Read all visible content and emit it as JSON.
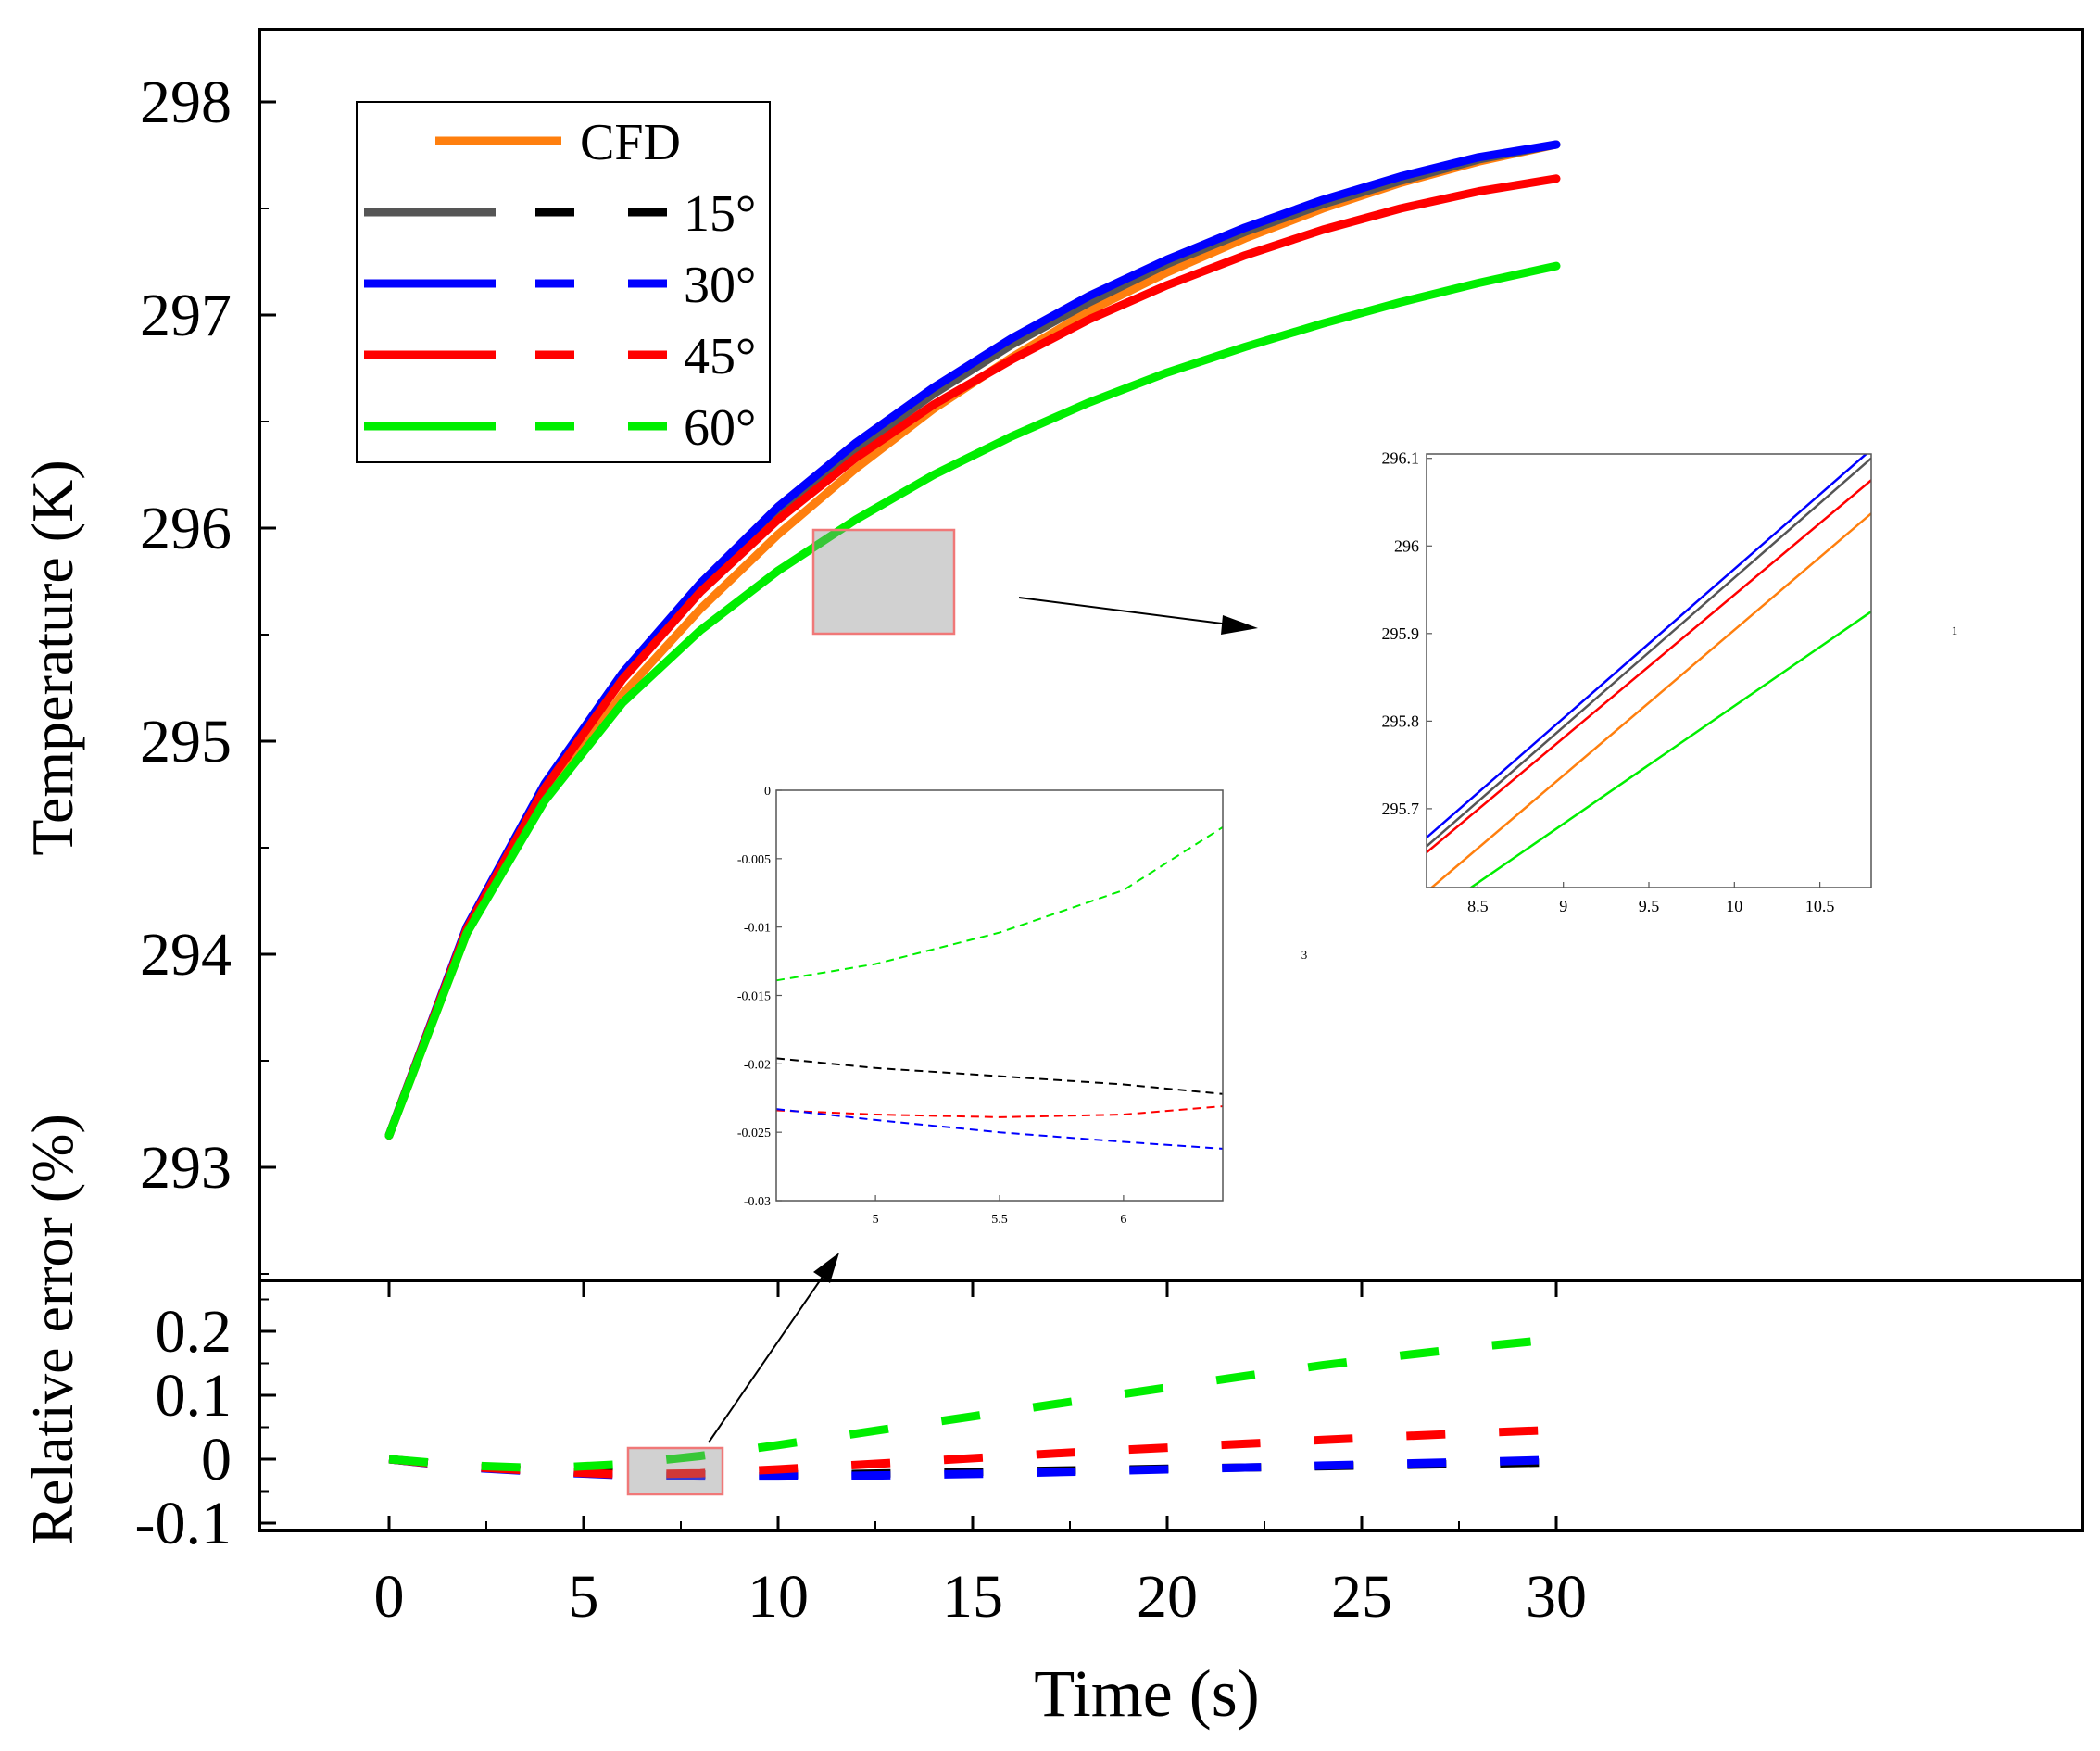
{
  "chart_data": [
    {
      "id": "main-top",
      "type": "line",
      "ylabel": "Temperature (K)",
      "ylim": [
        292.5,
        298.5
      ],
      "xlim": [
        -2.5,
        32.5
      ],
      "yticks": [
        "293",
        "294",
        "295",
        "296",
        "297",
        "298"
      ],
      "legend": {
        "placement": "top-left",
        "entries": [
          {
            "label": "CFD",
            "color": "#ff7f0e",
            "styles": [
              "solid"
            ]
          },
          {
            "label": "15°",
            "color_solid": "#555555",
            "color_dashed": "#000000",
            "styles": [
              "solid",
              "dashed"
            ]
          },
          {
            "label": "30°",
            "color": "#0000ff",
            "styles": [
              "solid",
              "dashed"
            ]
          },
          {
            "label": "45°",
            "color": "#ff0000",
            "styles": [
              "solid",
              "dashed"
            ]
          },
          {
            "label": "60°",
            "color": "#00ee00",
            "styles": [
              "solid",
              "dashed"
            ]
          }
        ]
      },
      "x": [
        0,
        2,
        4,
        6,
        8,
        10,
        12,
        14,
        16,
        18,
        20,
        22,
        24,
        26,
        28,
        30
      ],
      "series": [
        {
          "name": "CFD",
          "color": "#ff7f0e",
          "values": [
            293.15,
            294.1,
            294.73,
            295.22,
            295.62,
            295.97,
            296.28,
            296.56,
            296.8,
            297.02,
            297.2,
            297.36,
            297.5,
            297.62,
            297.72,
            297.8
          ]
        },
        {
          "name": "15°",
          "color": "#555555",
          "values": [
            293.15,
            294.12,
            294.78,
            295.3,
            295.72,
            296.07,
            296.37,
            296.63,
            296.86,
            297.06,
            297.24,
            297.39,
            297.52,
            297.63,
            297.73,
            297.8
          ]
        },
        {
          "name": "30°",
          "color": "#0000ff",
          "values": [
            293.15,
            294.13,
            294.8,
            295.32,
            295.74,
            296.1,
            296.4,
            296.66,
            296.89,
            297.09,
            297.26,
            297.41,
            297.54,
            297.65,
            297.74,
            297.8
          ]
        },
        {
          "name": "45°",
          "color": "#ff0000",
          "values": [
            293.15,
            294.12,
            294.78,
            295.29,
            295.7,
            296.04,
            296.33,
            296.58,
            296.79,
            296.98,
            297.14,
            297.28,
            297.4,
            297.5,
            297.58,
            297.64
          ]
        },
        {
          "name": "60°",
          "color": "#00ee00",
          "values": [
            293.15,
            294.1,
            294.72,
            295.18,
            295.52,
            295.8,
            296.04,
            296.25,
            296.43,
            296.59,
            296.73,
            296.85,
            296.96,
            297.06,
            297.15,
            297.23
          ]
        }
      ]
    },
    {
      "id": "main-bottom",
      "type": "line",
      "xlabel": "Time (s)",
      "ylabel": "Relative error (%)",
      "ylim": [
        -0.12,
        0.28
      ],
      "xlim": [
        -2.5,
        32.5
      ],
      "xticks": [
        "0",
        "5",
        "10",
        "15",
        "20",
        "25",
        "30"
      ],
      "yticks": [
        "-0.1",
        "0",
        "0.1",
        "0.2"
      ],
      "x": [
        0,
        2,
        4,
        6,
        8,
        10,
        12,
        14,
        16,
        18,
        20,
        22,
        24,
        26,
        28,
        30
      ],
      "series": [
        {
          "name": "15°",
          "color": "#000000",
          "values": [
            0,
            -0.012,
            -0.018,
            -0.022,
            -0.024,
            -0.024,
            -0.023,
            -0.021,
            -0.019,
            -0.017,
            -0.015,
            -0.013,
            -0.011,
            -0.009,
            -0.007,
            -0.005
          ]
        },
        {
          "name": "30°",
          "color": "#0000ff",
          "values": [
            0,
            -0.013,
            -0.02,
            -0.025,
            -0.027,
            -0.027,
            -0.026,
            -0.024,
            -0.022,
            -0.019,
            -0.016,
            -0.013,
            -0.01,
            -0.007,
            -0.004,
            -0.001
          ]
        },
        {
          "name": "45°",
          "color": "#ff0000",
          "values": [
            0,
            -0.012,
            -0.019,
            -0.024,
            -0.022,
            -0.016,
            -0.009,
            -0.002,
            0.005,
            0.012,
            0.018,
            0.024,
            0.03,
            0.036,
            0.041,
            0.046
          ]
        },
        {
          "name": "60°",
          "color": "#00ee00",
          "values": [
            0,
            -0.01,
            -0.014,
            -0.008,
            0.005,
            0.022,
            0.04,
            0.058,
            0.076,
            0.094,
            0.112,
            0.13,
            0.147,
            0.162,
            0.176,
            0.188
          ]
        }
      ]
    },
    {
      "id": "inset-temperature",
      "type": "line",
      "xlim": [
        8.2,
        10.8
      ],
      "ylim": [
        295.61,
        296.105
      ],
      "xticks": [
        "8.5",
        "9",
        "9.5",
        "10",
        "10.5"
      ],
      "yticks": [
        "295.7",
        "295.8",
        "295.9",
        "296",
        "296.1"
      ],
      "annotation": "1",
      "x": [
        8.2,
        10.8
      ],
      "series": [
        {
          "name": "30°",
          "color": "#0000ff",
          "values": [
            295.667,
            296.11
          ]
        },
        {
          "name": "15°",
          "color": "#555555",
          "values": [
            295.657,
            296.1
          ]
        },
        {
          "name": "45°",
          "color": "#ff0000",
          "values": [
            295.65,
            296.075
          ]
        },
        {
          "name": "CFD",
          "color": "#ff7f0e",
          "values": [
            295.605,
            296.037
          ]
        },
        {
          "name": "60°",
          "color": "#00ee00",
          "values": [
            295.575,
            295.925
          ]
        }
      ]
    },
    {
      "id": "inset-error",
      "type": "line",
      "xlim": [
        4.6,
        6.4
      ],
      "ylim": [
        -0.03,
        0
      ],
      "xticks": [
        "5",
        "5.5",
        "6"
      ],
      "yticks": [
        "0",
        "-0.005",
        "-0.01",
        "-0.015",
        "-0.02",
        "-0.025",
        "-0.03"
      ],
      "annotation": "3",
      "x": [
        4.6,
        5.0,
        5.5,
        6.0,
        6.4
      ],
      "series": [
        {
          "name": "60°",
          "color": "#00ee00",
          "values": [
            -0.0139,
            -0.0127,
            -0.0104,
            -0.0073,
            -0.0027
          ]
        },
        {
          "name": "15°",
          "color": "#000000",
          "values": [
            -0.0196,
            -0.0203,
            -0.0209,
            -0.0215,
            -0.0222
          ]
        },
        {
          "name": "45°",
          "color": "#ff0000",
          "values": [
            -0.0234,
            -0.0237,
            -0.0239,
            -0.0237,
            -0.0231
          ]
        },
        {
          "name": "30°",
          "color": "#0000ff",
          "values": [
            -0.0233,
            -0.0241,
            -0.025,
            -0.0257,
            -0.0262
          ]
        }
      ]
    }
  ]
}
